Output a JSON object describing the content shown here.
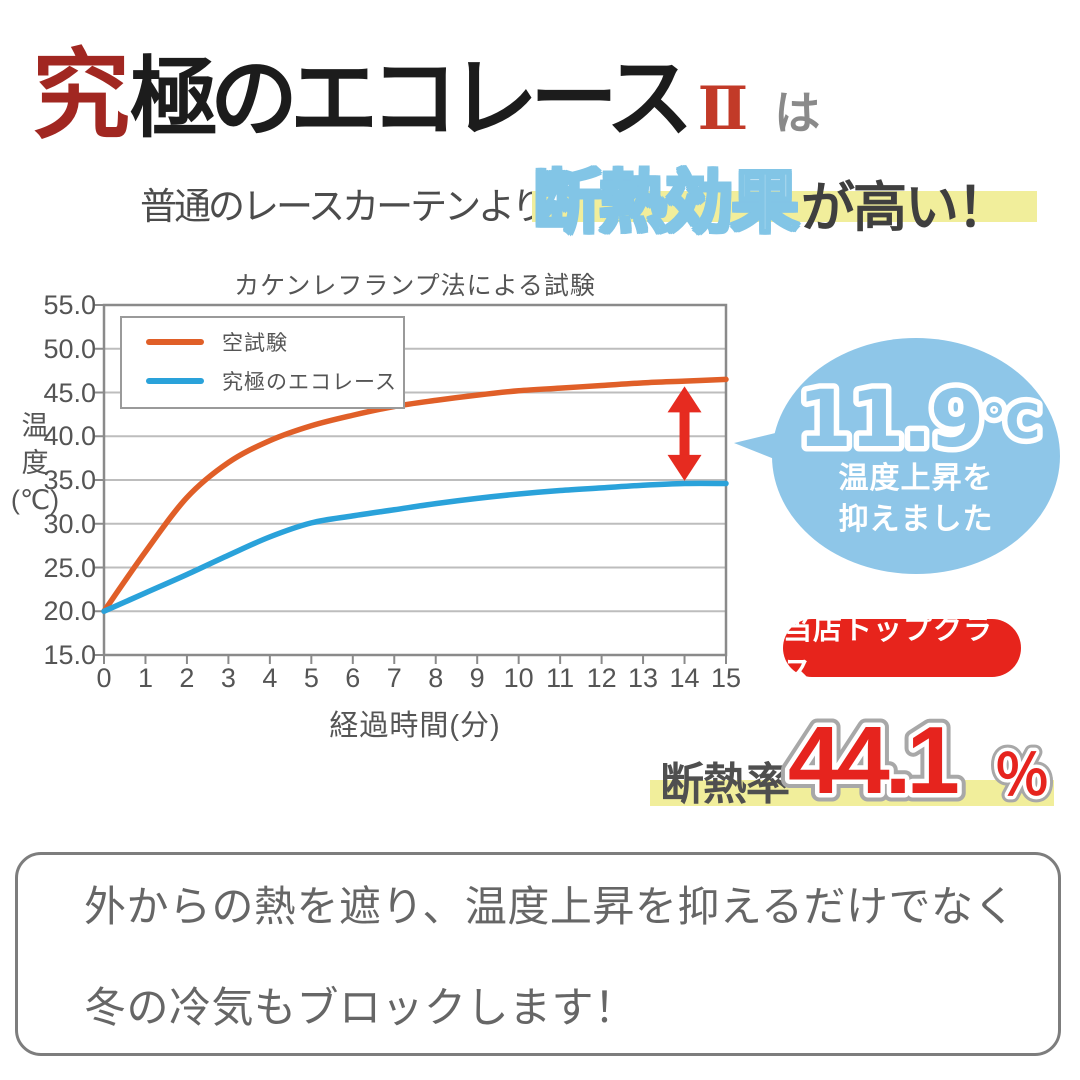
{
  "brand": {
    "first": "究",
    "rest": "極のエコレース",
    "numeral": "Ⅱ",
    "particle": "は"
  },
  "subtitle": {
    "prefix": "普通のレースカーテンより",
    "highlight": "断熱効果",
    "suffix": "が高い！"
  },
  "chart_data": {
    "type": "line",
    "title": "カケンレフランプ法による試験",
    "xlabel": "経過時間(分)",
    "ylabel": "温度(℃)",
    "ylabel_lines": [
      "温",
      "度",
      "(℃)"
    ],
    "x": [
      0,
      1,
      2,
      3,
      4,
      5,
      6,
      7,
      8,
      9,
      10,
      11,
      12,
      13,
      14,
      15
    ],
    "xlim": [
      0,
      15
    ],
    "ylim": [
      15,
      55
    ],
    "yticks": [
      "55.0",
      "50.0",
      "45.0",
      "40.0",
      "35.0",
      "30.0",
      "25.0",
      "20.0",
      "15.0"
    ],
    "grid": true,
    "legend_position": "top-left",
    "series": [
      {
        "name": "空試験",
        "color": "#e05f28",
        "values": [
          20.0,
          26.8,
          33.0,
          37.0,
          39.5,
          41.2,
          42.4,
          43.4,
          44.1,
          44.7,
          45.2,
          45.5,
          45.8,
          46.1,
          46.3,
          46.5
        ]
      },
      {
        "name": "究極のエコレース",
        "color": "#2aa2da",
        "values": [
          20.0,
          22.1,
          24.2,
          26.4,
          28.5,
          30.1,
          30.9,
          31.6,
          32.3,
          32.9,
          33.4,
          33.8,
          34.1,
          34.4,
          34.6,
          34.6
        ]
      }
    ],
    "annotation_arrow": {
      "x": 14,
      "y_top": 45.7,
      "y_bottom": 34.9,
      "color": "#e62b20"
    }
  },
  "bubble": {
    "value": "11.9",
    "unit": "℃",
    "caption_line1": "温度上昇を",
    "caption_line2": "抑えました",
    "color": "#8ec6e8"
  },
  "badge": {
    "label": "当店トップクラス",
    "color": "#e7241c"
  },
  "insulation": {
    "label": "断熱率",
    "value": "44.1",
    "unit": "％",
    "value_color": "#e6241e",
    "highlight_color": "#f1ee9b"
  },
  "footer": {
    "line1": "外からの熱を遮り、温度上昇を抑えるだけでなく",
    "line2": "冬の冷気もブロックします！"
  },
  "colors": {
    "brand_red": "#a12721",
    "numeral_red": "#c23a28",
    "particle_gray": "#8a8a8a",
    "highlight_yellow": "#f1ee9b",
    "highlight_stroke_blue": "#82c5e6",
    "text_dark": "#4c4c4c",
    "chart_text": "#555555",
    "axis_gray": "#8a8a8a",
    "grid_gray": "#bdbdbd",
    "arrow_red": "#e62b20",
    "badge_red": "#e7241c",
    "bubble_blue": "#8ec6e8"
  }
}
